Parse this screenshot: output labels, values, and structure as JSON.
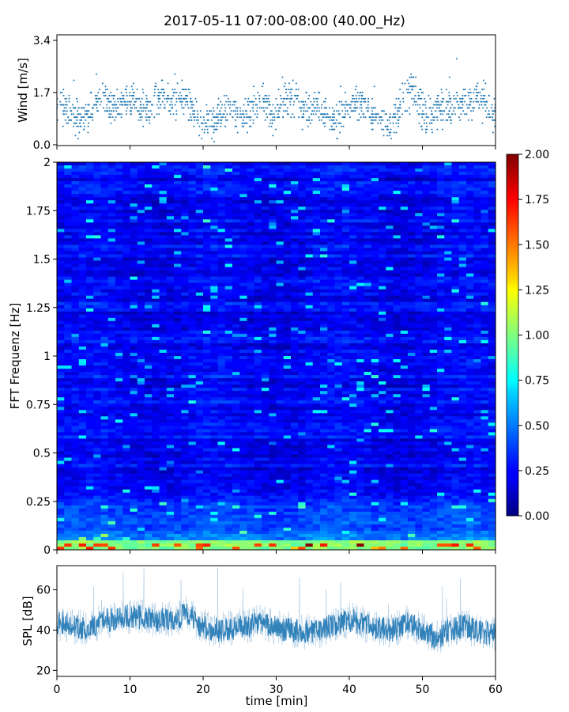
{
  "chart_data": {
    "title": "2017-05-11 07:00-08:00 (40.00_Hz)",
    "panels": [
      {
        "type": "scatter",
        "ylabel": "Wind [m/s]",
        "xlim": [
          0,
          60
        ],
        "ylim": [
          0.0,
          3.4
        ],
        "yticks": [
          "0.0",
          "1.7",
          "3.4"
        ],
        "color": "#1f77b4",
        "series": [
          {
            "x": [
              0.5,
              1.5,
              2.5,
              3.5,
              4.5,
              5.5,
              6.5,
              7.5,
              8.5,
              9.5,
              10.5,
              11.5,
              12.5,
              13.5,
              14.5,
              15.5,
              16.5,
              17.5,
              18.5,
              19.5,
              20.5,
              21.5,
              22.5,
              23.5,
              24.5,
              25.5,
              26.5,
              27.5,
              28.5,
              29.5,
              30.5,
              31.5,
              32.5,
              33.5,
              34.5,
              35.5,
              36.5,
              37.5,
              38.5,
              39.5,
              40.5,
              41.5,
              42.5,
              43.5,
              44.5,
              45.5,
              46.5,
              47.5,
              48.5,
              49.5,
              50.5,
              51.5,
              52.5,
              53.5,
              54.5,
              55.5,
              56.5,
              57.5,
              58.5,
              59.5
            ],
            "y": [
              1.2,
              1.1,
              0.9,
              0.8,
              1.0,
              1.3,
              1.6,
              1.3,
              1.2,
              1.5,
              1.4,
              1.1,
              1.2,
              1.5,
              1.6,
              1.3,
              1.5,
              1.4,
              1.1,
              0.9,
              0.8,
              0.7,
              1.0,
              1.2,
              1.1,
              0.9,
              1.0,
              1.3,
              1.4,
              0.8,
              1.2,
              1.4,
              1.5,
              1.2,
              1.1,
              1.3,
              1.0,
              0.8,
              0.9,
              1.2,
              1.3,
              1.4,
              1.1,
              1.0,
              0.8,
              0.7,
              0.9,
              1.5,
              1.7,
              1.3,
              0.9,
              1.0,
              1.2,
              1.1,
              1.3,
              1.4,
              1.2,
              1.5,
              1.4,
              1.0
            ]
          }
        ]
      },
      {
        "type": "heatmap",
        "ylabel": "FFT Frequenz [Hz]",
        "xlim": [
          0,
          60
        ],
        "ylim": [
          0,
          2
        ],
        "yticks": [
          "0",
          "0.25",
          "0.5",
          "0.75",
          "1",
          "1.25",
          "1.5",
          "1.75",
          "2"
        ],
        "colormap": "jet",
        "colorbar": {
          "range": [
            0.0,
            2.0
          ],
          "ticks": [
            "0.00",
            "0.25",
            "0.50",
            "0.75",
            "1.00",
            "1.25",
            "1.50",
            "1.75",
            "2.00"
          ]
        }
      },
      {
        "type": "line",
        "ylabel": "SPL [dB]",
        "xlabel": "time [min]",
        "xlim": [
          0,
          60
        ],
        "ylim": [
          17,
          72
        ],
        "yticks": [
          "20",
          "40",
          "60"
        ],
        "xticks": [
          "0",
          "10",
          "20",
          "30",
          "40",
          "50",
          "60"
        ],
        "color": "#1f77b4",
        "series": [
          {
            "x": [
              0,
              2,
              4,
              6,
              8,
              10,
              12,
              14,
              16,
              18,
              20,
              22,
              24,
              26,
              28,
              30,
              32,
              34,
              36,
              38,
              40,
              42,
              44,
              46,
              48,
              50,
              52,
              54,
              56,
              58,
              60
            ],
            "y": [
              44,
              42,
              41,
              44,
              46,
              47,
              46,
              45,
              46,
              48,
              41,
              40,
              41,
              42,
              44,
              41,
              40,
              39,
              40,
              43,
              45,
              43,
              41,
              40,
              44,
              40,
              36,
              41,
              42,
              39,
              38
            ]
          }
        ]
      }
    ]
  }
}
